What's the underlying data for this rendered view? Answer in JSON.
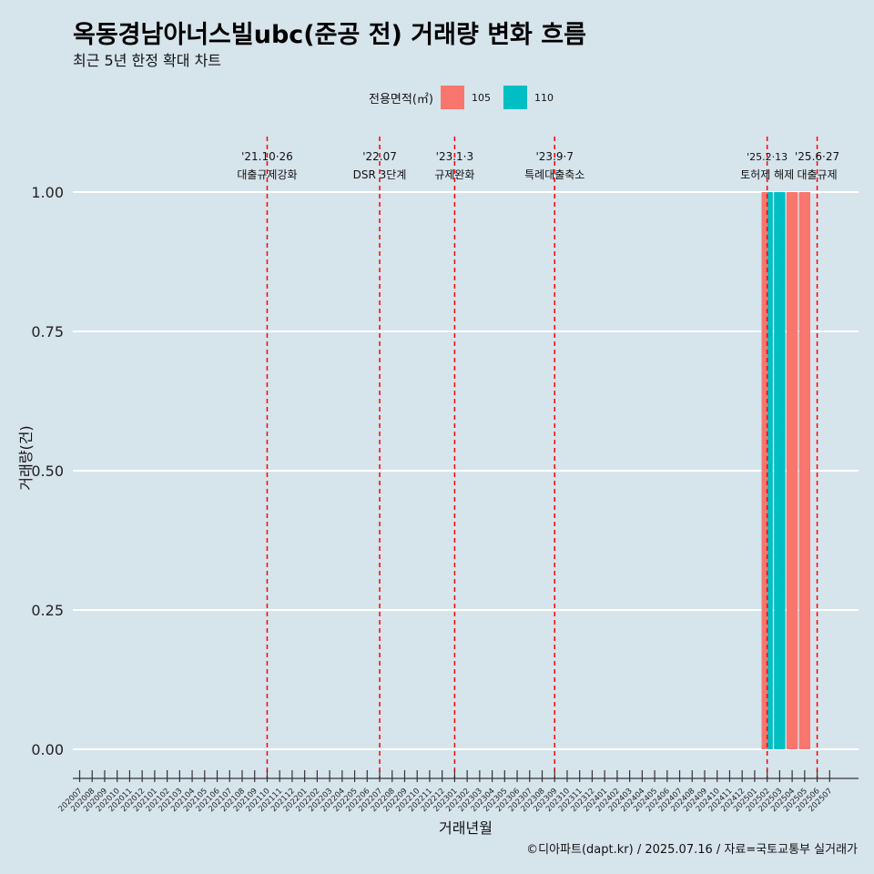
{
  "title": "옥동경남아너스빌ubc(준공 전) 거래량 변화 흐름",
  "subtitle": "최근 5년 한정 확대 차트",
  "caption": "©디아파트(dapt.kr) / 2025.07.16 / 자료=국토교통부 실거래가",
  "legend": {
    "title": "전용면적(㎡)",
    "items": [
      {
        "label": "105",
        "color": "#f8766d"
      },
      {
        "label": "110",
        "color": "#00bfc4"
      }
    ]
  },
  "chart_data": {
    "type": "bar",
    "xlabel": "거래년월",
    "ylabel": "거래량(건)",
    "ylim": [
      0,
      1
    ],
    "yticks": [
      "0.00",
      "0.25",
      "0.50",
      "0.75",
      "1.00"
    ],
    "grid": true,
    "categories": [
      "202007",
      "202008",
      "202009",
      "202010",
      "202011",
      "202012",
      "202101",
      "202102",
      "202103",
      "202104",
      "202105",
      "202106",
      "202107",
      "202108",
      "202109",
      "202110",
      "202111",
      "202112",
      "202201",
      "202202",
      "202203",
      "202204",
      "202205",
      "202206",
      "202207",
      "202208",
      "202209",
      "202210",
      "202211",
      "202212",
      "202301",
      "202302",
      "202303",
      "202304",
      "202305",
      "202306",
      "202307",
      "202308",
      "202309",
      "202310",
      "202311",
      "202312",
      "202401",
      "202402",
      "202403",
      "202404",
      "202405",
      "202406",
      "202407",
      "202408",
      "202409",
      "202410",
      "202411",
      "202412",
      "202501",
      "202502",
      "202503",
      "202504",
      "202505",
      "202506",
      "202507"
    ],
    "bars": [
      {
        "x": "202502",
        "series": "105",
        "value": 1
      },
      {
        "x": "202502",
        "series": "110",
        "value": 1
      },
      {
        "x": "202503",
        "series": "110",
        "value": 1
      },
      {
        "x": "202504",
        "series": "105",
        "value": 1
      },
      {
        "x": "202505",
        "series": "105",
        "value": 1
      }
    ],
    "events": [
      {
        "x": "202110",
        "date": "'21.10·26",
        "label": "대출규제강화"
      },
      {
        "x": "202207",
        "date": "'22.07",
        "label": "DSR 3단계"
      },
      {
        "x": "202301",
        "date": "'23.1·3",
        "label": "규제완화"
      },
      {
        "x": "202309",
        "date": "'23.9·7",
        "label": "특례대출축소"
      },
      {
        "x": "202502",
        "date": "'25.2·13",
        "label": "토허제 해제"
      },
      {
        "x": "202506",
        "date": "'25.6·27",
        "label": "대출규제"
      }
    ]
  }
}
